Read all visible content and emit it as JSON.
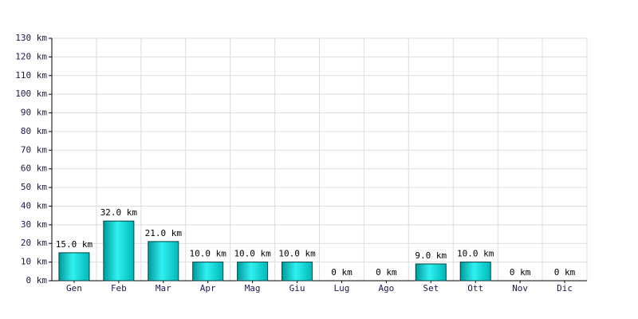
{
  "chart_data": {
    "type": "bar",
    "categories": [
      "Gen",
      "Feb",
      "Mar",
      "Apr",
      "Mag",
      "Giu",
      "Lug",
      "Ago",
      "Set",
      "Ott",
      "Nov",
      "Dic"
    ],
    "values": [
      15,
      32,
      21,
      10,
      10,
      10,
      0,
      0,
      9,
      10,
      0,
      0
    ],
    "value_labels": [
      "15.0 km",
      "32.0 km",
      "21.0 km",
      "10.0 km",
      "10.0 km",
      "10.0 km",
      "0 km",
      "0 km",
      "9.0 km",
      "10.0 km",
      "0 km",
      "0 km"
    ],
    "color": "#30f0f0",
    "ylim": [
      0,
      130
    ],
    "yticks": [
      {
        "value": 0,
        "label": "0 km"
      },
      {
        "value": 10,
        "label": "10 km"
      },
      {
        "value": 20,
        "label": "20 km"
      },
      {
        "value": 30,
        "label": "30 km"
      },
      {
        "value": 40,
        "label": "40 km"
      },
      {
        "value": 50,
        "label": "50 km"
      },
      {
        "value": 60,
        "label": "60 km"
      },
      {
        "value": 70,
        "label": "70 km"
      },
      {
        "value": 80,
        "label": "80 km"
      },
      {
        "value": 90,
        "label": "90 km"
      },
      {
        "value": 100,
        "label": "100 km"
      },
      {
        "value": 110,
        "label": "110 km"
      },
      {
        "value": 120,
        "label": "120 km"
      },
      {
        "value": 130,
        "label": "130 km"
      }
    ],
    "grid": true
  }
}
